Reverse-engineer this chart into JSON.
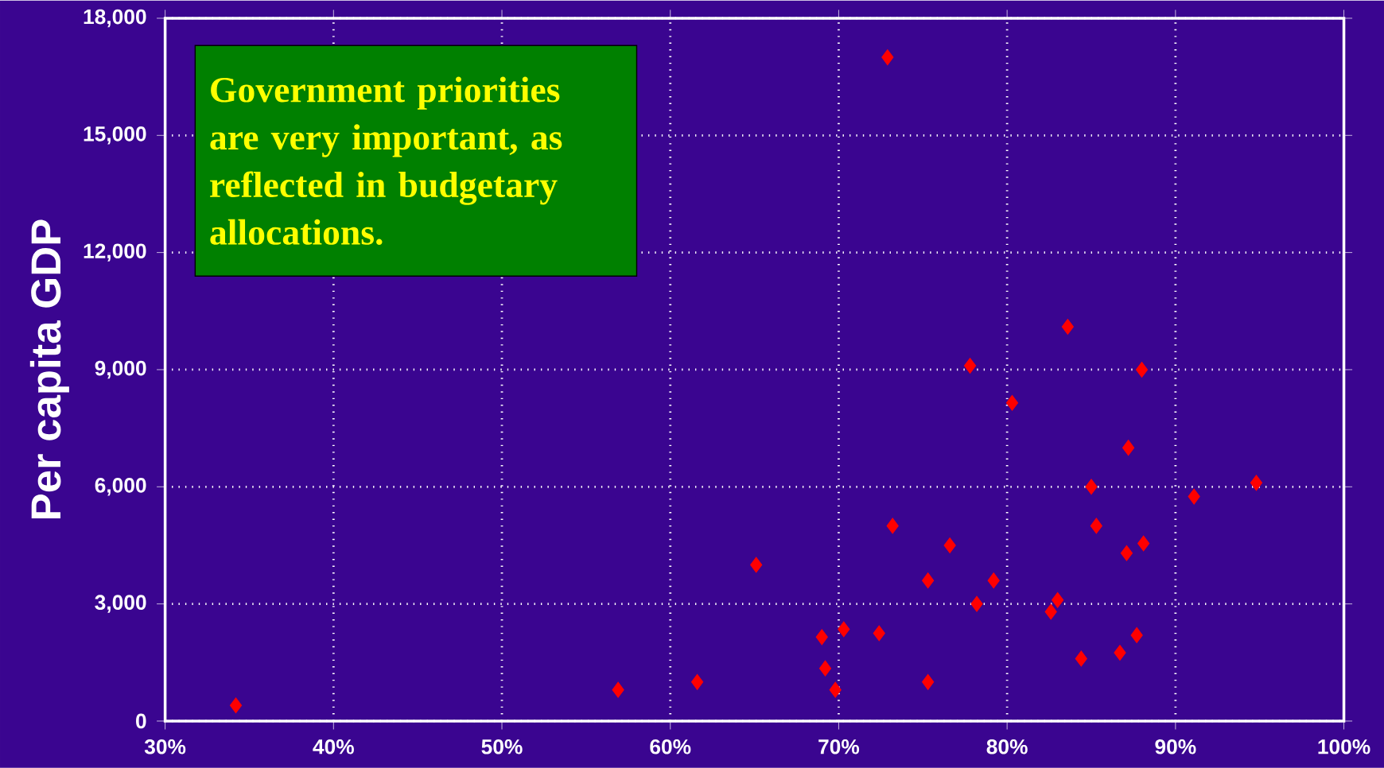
{
  "chart_data": {
    "type": "scatter",
    "ylabel": "Per capita GDP",
    "annotations": [
      "Government priorities are very important, as reflected in budgetary allocations."
    ],
    "xlim": [
      30,
      100
    ],
    "ylim": [
      0,
      18000
    ],
    "xticks": [
      {
        "value": 30,
        "label": "30%"
      },
      {
        "value": 40,
        "label": "40%"
      },
      {
        "value": 50,
        "label": "50%"
      },
      {
        "value": 60,
        "label": "60%"
      },
      {
        "value": 70,
        "label": "70%"
      },
      {
        "value": 80,
        "label": "80%"
      },
      {
        "value": 90,
        "label": "90%"
      },
      {
        "value": 100,
        "label": "100%"
      }
    ],
    "yticks": [
      {
        "value": 0,
        "label": "0"
      },
      {
        "value": 3000,
        "label": "3,000"
      },
      {
        "value": 6000,
        "label": "6,000"
      },
      {
        "value": 9000,
        "label": "9,000"
      },
      {
        "value": 12000,
        "label": "12,000"
      },
      {
        "value": 15000,
        "label": "15,000"
      },
      {
        "value": 18000,
        "label": "18,000"
      }
    ],
    "grid": true,
    "marker": "diamond",
    "color": "#ff0000",
    "x": [
      34.2,
      56.9,
      61.6,
      65.1,
      69.0,
      69.2,
      69.8,
      70.3,
      72.4,
      72.9,
      73.2,
      75.3,
      75.3,
      76.6,
      77.8,
      78.2,
      79.2,
      80.3,
      82.6,
      83.0,
      83.6,
      84.4,
      85.0,
      85.3,
      86.7,
      87.1,
      87.2,
      87.7,
      88.0,
      88.1,
      91.1,
      94.8
    ],
    "values": [
      400,
      800,
      1000,
      4000,
      2150,
      1350,
      800,
      2350,
      2250,
      17000,
      5000,
      3600,
      1000,
      4500,
      9100,
      3000,
      3600,
      8150,
      2800,
      3100,
      10100,
      1600,
      6000,
      5000,
      1750,
      4300,
      7000,
      2200,
      9000,
      4550,
      5750,
      6100
    ]
  }
}
